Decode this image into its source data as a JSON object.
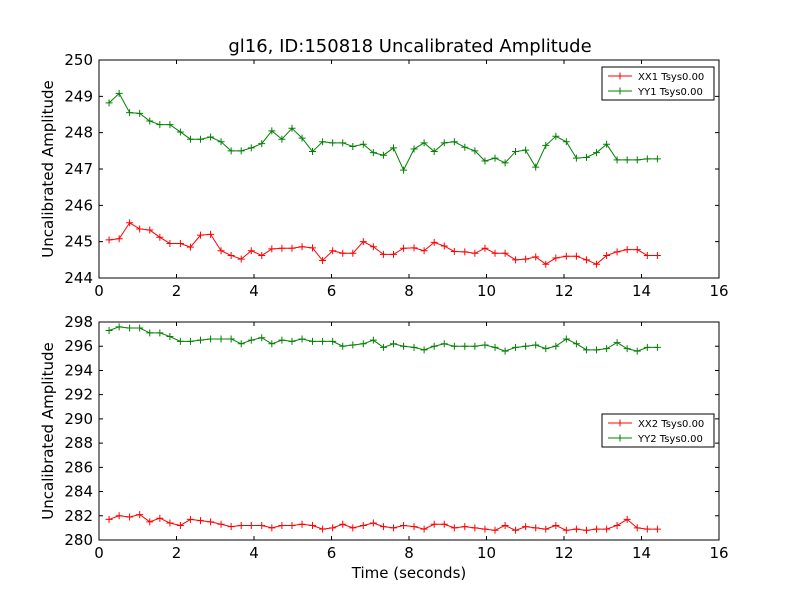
{
  "title": "gl16, ID:150818 Uncalibrated Amplitude",
  "chart_data": [
    {
      "type": "line",
      "title": "gl16, ID:150818 Uncalibrated Amplitude",
      "xlabel": "",
      "ylabel": "Uncalibrated Amplitude",
      "xlim": [
        0,
        16
      ],
      "ylim": [
        244,
        250
      ],
      "xticks": [
        0,
        2,
        4,
        6,
        8,
        10,
        12,
        14,
        16
      ],
      "yticks": [
        244,
        245,
        246,
        247,
        248,
        249,
        250
      ],
      "grid": false,
      "legend_position": "top-right",
      "x": [
        0.26,
        0.52,
        0.79,
        1.05,
        1.31,
        1.57,
        1.83,
        2.1,
        2.36,
        2.62,
        2.88,
        3.15,
        3.41,
        3.67,
        3.93,
        4.2,
        4.46,
        4.72,
        4.98,
        5.24,
        5.51,
        5.77,
        6.03,
        6.29,
        6.55,
        6.82,
        7.08,
        7.34,
        7.6,
        7.86,
        8.13,
        8.39,
        8.65,
        8.91,
        9.17,
        9.44,
        9.7,
        9.96,
        10.22,
        10.48,
        10.75,
        11.01,
        11.27,
        11.53,
        11.79,
        12.06,
        12.32,
        12.58,
        12.84,
        13.1,
        13.37,
        13.63,
        13.89,
        14.15,
        14.41
      ],
      "series": [
        {
          "name": "XX1 Tsys0.00",
          "color": "#ff0000",
          "values": [
            245.05,
            245.08,
            245.52,
            245.35,
            245.32,
            245.12,
            244.95,
            244.95,
            244.85,
            245.18,
            245.2,
            244.75,
            244.62,
            244.52,
            244.75,
            244.62,
            244.8,
            244.82,
            244.82,
            244.86,
            244.83,
            244.48,
            244.75,
            244.68,
            244.68,
            245.0,
            244.86,
            244.65,
            244.65,
            244.82,
            244.83,
            244.75,
            244.98,
            244.88,
            244.73,
            244.72,
            244.68,
            244.82,
            244.68,
            244.68,
            244.5,
            244.52,
            244.58,
            244.38,
            244.55,
            244.6,
            244.6,
            244.5,
            244.38,
            244.62,
            244.72,
            244.78,
            244.78,
            244.62,
            244.62
          ]
        },
        {
          "name": "YY1 Tsys0.00",
          "color": "#008000",
          "values": [
            248.82,
            249.08,
            248.55,
            248.53,
            248.32,
            248.22,
            248.22,
            248.02,
            247.82,
            247.82,
            247.88,
            247.75,
            247.5,
            247.5,
            247.58,
            247.7,
            248.05,
            247.82,
            248.12,
            247.85,
            247.48,
            247.75,
            247.72,
            247.72,
            247.62,
            247.68,
            247.45,
            247.38,
            247.58,
            246.97,
            247.55,
            247.72,
            247.48,
            247.72,
            247.75,
            247.6,
            247.5,
            247.22,
            247.3,
            247.17,
            247.48,
            247.52,
            247.05,
            247.65,
            247.9,
            247.75,
            247.3,
            247.32,
            247.45,
            247.68,
            247.25,
            247.25,
            247.25,
            247.28,
            247.28
          ]
        }
      ]
    },
    {
      "type": "line",
      "title": "",
      "xlabel": "Time (seconds)",
      "ylabel": "Uncalibrated Amplitude",
      "xlim": [
        0,
        16
      ],
      "ylim": [
        280,
        298
      ],
      "xticks": [
        0,
        2,
        4,
        6,
        8,
        10,
        12,
        14,
        16
      ],
      "yticks": [
        280,
        282,
        284,
        286,
        288,
        290,
        292,
        294,
        296,
        298
      ],
      "grid": false,
      "legend_position": "center-right",
      "x": [
        0.26,
        0.52,
        0.79,
        1.05,
        1.31,
        1.57,
        1.83,
        2.1,
        2.36,
        2.62,
        2.88,
        3.15,
        3.41,
        3.67,
        3.93,
        4.2,
        4.46,
        4.72,
        4.98,
        5.24,
        5.51,
        5.77,
        6.03,
        6.29,
        6.55,
        6.82,
        7.08,
        7.34,
        7.6,
        7.86,
        8.13,
        8.39,
        8.65,
        8.91,
        9.17,
        9.44,
        9.7,
        9.96,
        10.22,
        10.48,
        10.75,
        11.01,
        11.27,
        11.53,
        11.79,
        12.06,
        12.32,
        12.58,
        12.84,
        13.1,
        13.37,
        13.63,
        13.89,
        14.15,
        14.41
      ],
      "series": [
        {
          "name": "XX2 Tsys0.00",
          "color": "#ff0000",
          "values": [
            281.7,
            282.0,
            281.9,
            282.1,
            281.5,
            281.8,
            281.4,
            281.2,
            281.7,
            281.6,
            281.5,
            281.3,
            281.1,
            281.2,
            281.2,
            281.2,
            281.0,
            281.2,
            281.2,
            281.3,
            281.2,
            280.9,
            281.0,
            281.3,
            281.0,
            281.2,
            281.4,
            281.1,
            281.0,
            281.2,
            281.1,
            280.9,
            281.3,
            281.3,
            281.0,
            281.1,
            281.0,
            280.9,
            280.8,
            281.2,
            280.8,
            281.1,
            281.0,
            280.9,
            281.2,
            280.8,
            280.9,
            280.8,
            280.9,
            280.9,
            281.2,
            281.7,
            281.0,
            280.9,
            280.9
          ]
        },
        {
          "name": "YY2 Tsys0.00",
          "color": "#008000",
          "values": [
            297.3,
            297.6,
            297.5,
            297.5,
            297.1,
            297.1,
            296.8,
            296.4,
            296.4,
            296.5,
            296.6,
            296.6,
            296.6,
            296.2,
            296.5,
            296.7,
            296.2,
            296.5,
            296.4,
            296.6,
            296.4,
            296.4,
            296.4,
            296.0,
            296.1,
            296.2,
            296.5,
            295.9,
            296.2,
            296.0,
            295.9,
            295.7,
            296.0,
            296.2,
            296.0,
            296.0,
            296.0,
            296.1,
            295.9,
            295.6,
            295.9,
            296.0,
            296.1,
            295.8,
            296.0,
            296.6,
            296.2,
            295.7,
            295.7,
            295.8,
            296.3,
            295.8,
            295.6,
            295.9,
            295.9
          ]
        }
      ]
    }
  ]
}
